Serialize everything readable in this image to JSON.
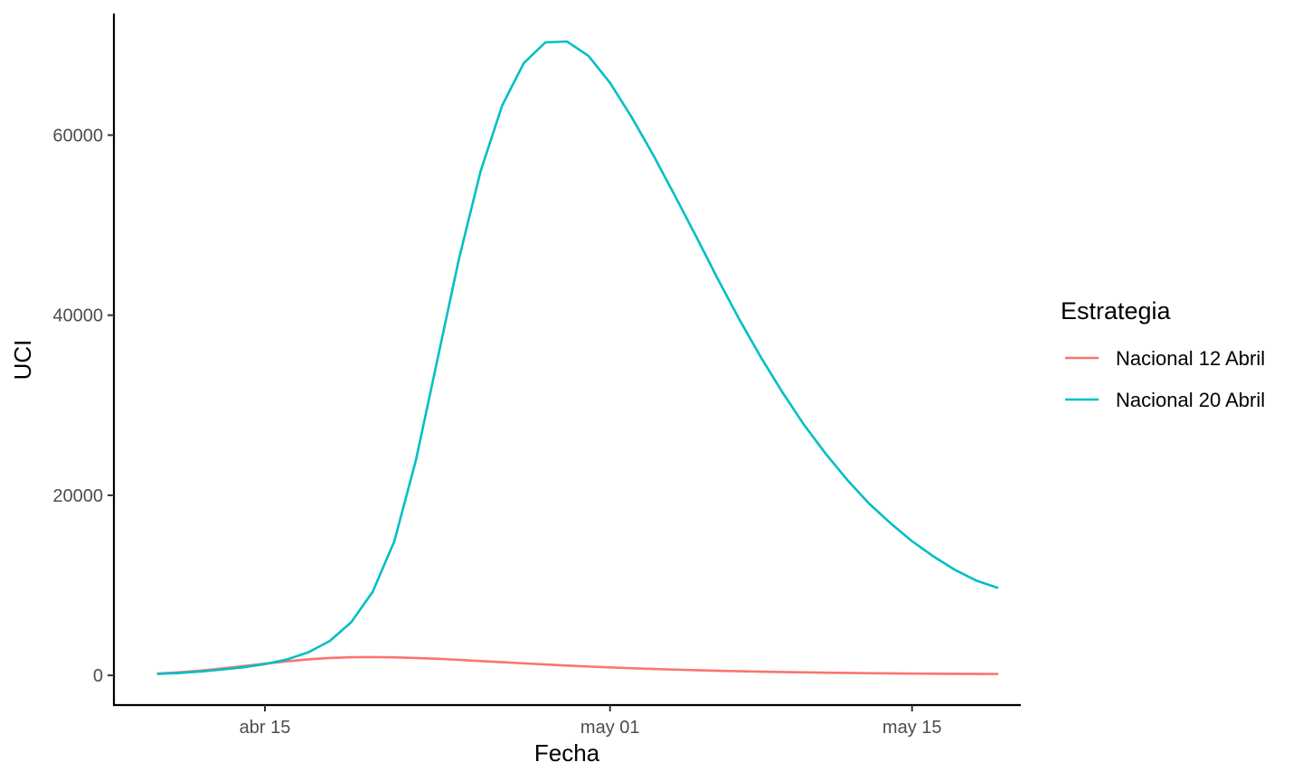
{
  "chart_data": {
    "type": "line",
    "xlabel": "Fecha",
    "ylabel": "UCI",
    "x_axis": {
      "type": "date",
      "range": [
        "2020-04-08",
        "2020-05-20"
      ],
      "ticks": [
        {
          "date": "2020-04-15",
          "label": "abr 15"
        },
        {
          "date": "2020-05-01",
          "label": "may 01"
        },
        {
          "date": "2020-05-15",
          "label": "may 15"
        }
      ]
    },
    "y_axis": {
      "range": [
        -3300,
        73500
      ],
      "ticks": [
        {
          "value": 0,
          "label": "0"
        },
        {
          "value": 20000,
          "label": "20000"
        },
        {
          "value": 40000,
          "label": "40000"
        },
        {
          "value": 60000,
          "label": "60000"
        }
      ]
    },
    "grid": false,
    "legend": {
      "title": "Estrategia",
      "placement": "right"
    },
    "series": [
      {
        "name": "Nacional 12 Abril",
        "color": "#F8766D",
        "points": [
          [
            "2020-04-10",
            200
          ],
          [
            "2020-04-11",
            330
          ],
          [
            "2020-04-12",
            520
          ],
          [
            "2020-04-13",
            760
          ],
          [
            "2020-04-14",
            1020
          ],
          [
            "2020-04-15",
            1300
          ],
          [
            "2020-04-16",
            1550
          ],
          [
            "2020-04-17",
            1780
          ],
          [
            "2020-04-18",
            1930
          ],
          [
            "2020-04-19",
            2010
          ],
          [
            "2020-04-20",
            2030
          ],
          [
            "2020-04-21",
            2000
          ],
          [
            "2020-04-22",
            1930
          ],
          [
            "2020-04-23",
            1840
          ],
          [
            "2020-04-24",
            1720
          ],
          [
            "2020-04-25",
            1590
          ],
          [
            "2020-04-26",
            1460
          ],
          [
            "2020-04-27",
            1330
          ],
          [
            "2020-04-28",
            1210
          ],
          [
            "2020-04-29",
            1090
          ],
          [
            "2020-04-30",
            980
          ],
          [
            "2020-05-01",
            880
          ],
          [
            "2020-05-02",
            790
          ],
          [
            "2020-05-03",
            710
          ],
          [
            "2020-05-04",
            640
          ],
          [
            "2020-05-05",
            570
          ],
          [
            "2020-05-06",
            510
          ],
          [
            "2020-05-07",
            460
          ],
          [
            "2020-05-08",
            410
          ],
          [
            "2020-05-09",
            370
          ],
          [
            "2020-05-10",
            330
          ],
          [
            "2020-05-11",
            300
          ],
          [
            "2020-05-12",
            270
          ],
          [
            "2020-05-13",
            240
          ],
          [
            "2020-05-14",
            220
          ],
          [
            "2020-05-15",
            200
          ],
          [
            "2020-05-16",
            180
          ],
          [
            "2020-05-17",
            170
          ],
          [
            "2020-05-18",
            160
          ],
          [
            "2020-05-19",
            150
          ]
        ]
      },
      {
        "name": "Nacional 20 Abril",
        "color": "#00BFC4",
        "points": [
          [
            "2020-04-10",
            150
          ],
          [
            "2020-04-11",
            260
          ],
          [
            "2020-04-12",
            420
          ],
          [
            "2020-04-13",
            640
          ],
          [
            "2020-04-14",
            900
          ],
          [
            "2020-04-15",
            1250
          ],
          [
            "2020-04-16",
            1750
          ],
          [
            "2020-04-17",
            2550
          ],
          [
            "2020-04-18",
            3800
          ],
          [
            "2020-04-19",
            5900
          ],
          [
            "2020-04-20",
            9300
          ],
          [
            "2020-04-21",
            14900
          ],
          [
            "2020-04-22",
            23900
          ],
          [
            "2020-04-23",
            35100
          ],
          [
            "2020-04-24",
            46300
          ],
          [
            "2020-04-25",
            56000
          ],
          [
            "2020-04-26",
            63300
          ],
          [
            "2020-04-27",
            68000
          ],
          [
            "2020-04-28",
            70300
          ],
          [
            "2020-04-29",
            70400
          ],
          [
            "2020-04-30",
            68800
          ],
          [
            "2020-05-01",
            65800
          ],
          [
            "2020-05-02",
            62000
          ],
          [
            "2020-05-03",
            57800
          ],
          [
            "2020-05-04",
            53300
          ],
          [
            "2020-05-05",
            48700
          ],
          [
            "2020-05-06",
            44000
          ],
          [
            "2020-05-07",
            39500
          ],
          [
            "2020-05-08",
            35300
          ],
          [
            "2020-05-09",
            31400
          ],
          [
            "2020-05-10",
            27800
          ],
          [
            "2020-05-11",
            24600
          ],
          [
            "2020-05-12",
            21700
          ],
          [
            "2020-05-13",
            19100
          ],
          [
            "2020-05-14",
            16900
          ],
          [
            "2020-05-15",
            14900
          ],
          [
            "2020-05-16",
            13200
          ],
          [
            "2020-05-17",
            11700
          ],
          [
            "2020-05-18",
            10500
          ],
          [
            "2020-05-19",
            9700
          ]
        ]
      }
    ]
  }
}
